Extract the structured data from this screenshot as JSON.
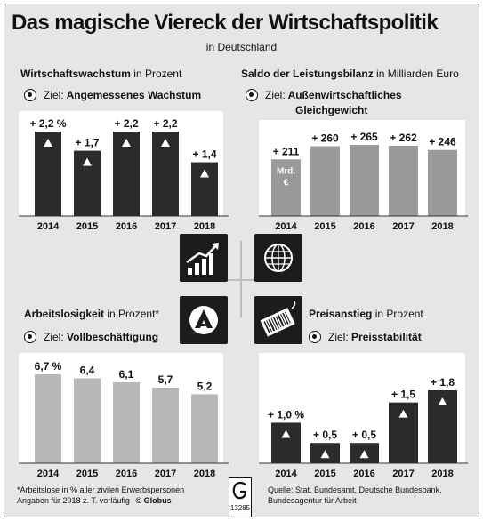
{
  "title": "Das magische Viereck der Wirtschaftspolitik",
  "subtitle": "in Deutschland",
  "panels": {
    "growth": {
      "title": "Wirtschaftswachstum",
      "unit": "in Prozent",
      "goal_label": "Ziel:",
      "goal_text": "Angemessenes Wachstum"
    },
    "balance": {
      "title": "Saldo der Leistungsbilanz",
      "unit": "in Milliarden Euro",
      "goal_label": "Ziel:",
      "goal_text_1": "Außenwirtschaftliches",
      "goal_text_2": "Gleichgewicht"
    },
    "unemployment": {
      "title": "Arbeitslosigkeit",
      "unit": "in Prozent*",
      "goal_label": "Ziel:",
      "goal_text": "Vollbeschäftigung"
    },
    "prices": {
      "title": "Preisanstieg",
      "unit": "in Prozent",
      "goal_label": "Ziel:",
      "goal_text": "Preisstabilität"
    }
  },
  "icons": [
    "rising-bar-chart-icon",
    "globe-icon",
    "employment-agency-logo-icon",
    "price-tag-barcode-icon"
  ],
  "colors": {
    "dark_bar": "#2b2b2b",
    "mid_bar": "#9a9a9a",
    "light_bar": "#b8b8b8",
    "background": "#e6e6e6"
  },
  "chart_data": [
    {
      "id": "growth",
      "type": "bar",
      "categories": [
        "2014",
        "2015",
        "2016",
        "2017",
        "2018"
      ],
      "values": [
        2.2,
        1.7,
        2.2,
        2.2,
        1.4
      ],
      "labels": [
        "+ 2,2 %",
        "+ 1,7",
        "+ 2,2",
        "+ 2,2",
        "+ 1,4"
      ],
      "ylim": [
        0,
        2.2
      ],
      "markers": "up-triangle"
    },
    {
      "id": "balance",
      "type": "bar",
      "categories": [
        "2014",
        "2015",
        "2016",
        "2017",
        "2018"
      ],
      "values": [
        211,
        260,
        265,
        262,
        246
      ],
      "labels": [
        "+ 211",
        "+ 260",
        "+ 265",
        "+ 262",
        "+ 246"
      ],
      "bar_annotation": "Mrd. €",
      "ylim": [
        0,
        265
      ]
    },
    {
      "id": "unemployment",
      "type": "bar",
      "categories": [
        "2014",
        "2015",
        "2016",
        "2017",
        "2018"
      ],
      "values": [
        6.7,
        6.4,
        6.1,
        5.7,
        5.2
      ],
      "labels": [
        "6,7 %",
        "6,4",
        "6,1",
        "5,7",
        "5,2"
      ],
      "ylim": [
        0,
        6.7
      ]
    },
    {
      "id": "prices",
      "type": "bar",
      "categories": [
        "2014",
        "2015",
        "2016",
        "2017",
        "2018"
      ],
      "values": [
        1.0,
        0.5,
        0.5,
        1.5,
        1.8
      ],
      "labels": [
        "+ 1,0 %",
        "+ 0,5",
        "+ 0,5",
        "+ 1,5",
        "+ 1,8"
      ],
      "ylim": [
        0,
        1.8
      ],
      "markers": "up-triangle"
    }
  ],
  "footnote_left_1": "*Arbeitslose in % aller zivilen Erwerbspersonen",
  "footnote_left_2": "Angaben für 2018 z. T. vorläufig",
  "copyright": "© Globus",
  "logo_number": "13285",
  "source_1": "Quelle: Stat. Bundesamt, Deutsche Bundesbank,",
  "source_2": "Bundesagentur für Arbeit"
}
